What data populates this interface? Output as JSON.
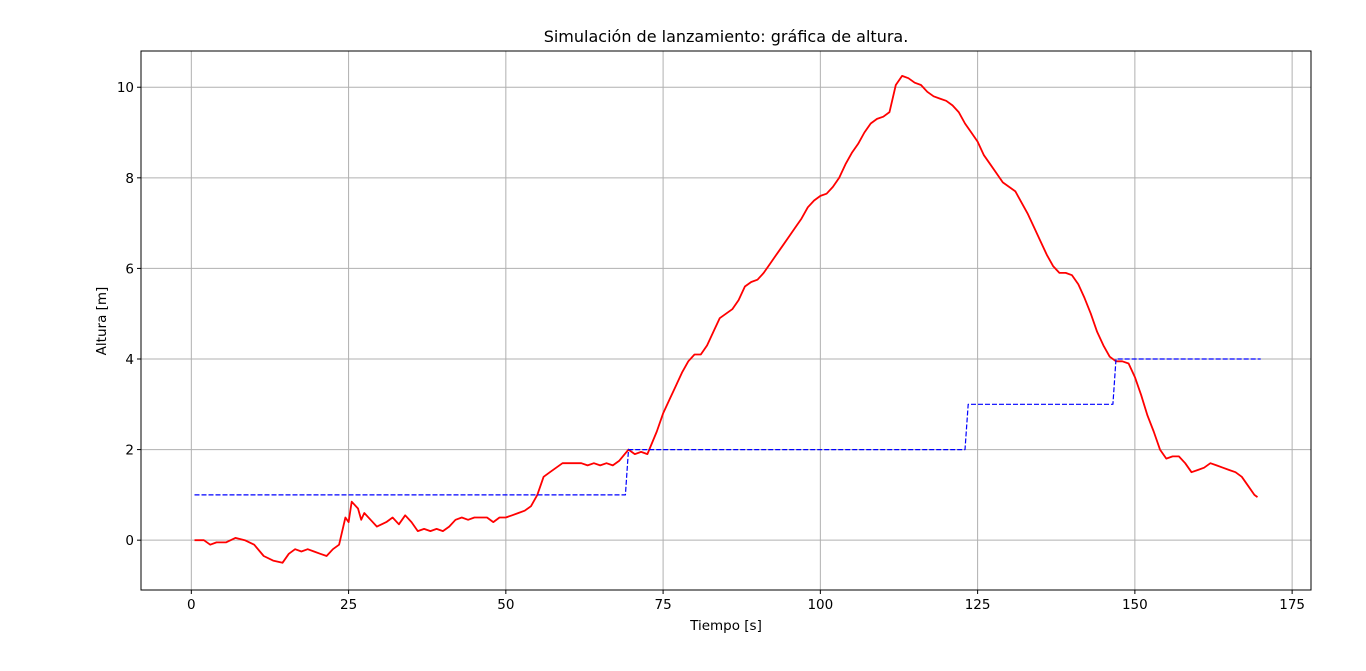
{
  "chart_data": {
    "type": "line",
    "title": "Simulación de lanzamiento: gráfica de altura.",
    "xlabel": "Tiempo [s]",
    "ylabel": "Altura [m]",
    "xlim": [
      -8,
      178
    ],
    "ylim": [
      -1.1,
      10.8
    ],
    "xticks": [
      0,
      25,
      50,
      75,
      100,
      125,
      150,
      175
    ],
    "yticks": [
      0,
      2,
      4,
      6,
      8,
      10
    ],
    "xtick_labels": [
      "0",
      "25",
      "50",
      "75",
      "100",
      "125",
      "150",
      "175"
    ],
    "ytick_labels": [
      "0",
      "2",
      "4",
      "6",
      "8",
      "10"
    ],
    "grid": true,
    "legend": null,
    "series": [
      {
        "color": "#ff0000",
        "style": "solid",
        "points": [
          [
            0.5,
            0.0
          ],
          [
            2.0,
            0.0
          ],
          [
            3.0,
            -0.1
          ],
          [
            4.0,
            -0.05
          ],
          [
            5.5,
            -0.05
          ],
          [
            7.0,
            0.05
          ],
          [
            8.5,
            0.0
          ],
          [
            10.0,
            -0.1
          ],
          [
            11.5,
            -0.35
          ],
          [
            13.0,
            -0.45
          ],
          [
            14.5,
            -0.5
          ],
          [
            15.5,
            -0.3
          ],
          [
            16.5,
            -0.2
          ],
          [
            17.5,
            -0.25
          ],
          [
            18.5,
            -0.2
          ],
          [
            19.5,
            -0.25
          ],
          [
            20.5,
            -0.3
          ],
          [
            21.5,
            -0.35
          ],
          [
            22.5,
            -0.2
          ],
          [
            23.5,
            -0.1
          ],
          [
            24.5,
            0.5
          ],
          [
            25.0,
            0.4
          ],
          [
            25.5,
            0.85
          ],
          [
            26.5,
            0.7
          ],
          [
            27.0,
            0.45
          ],
          [
            27.5,
            0.6
          ],
          [
            28.5,
            0.45
          ],
          [
            29.5,
            0.3
          ],
          [
            31.0,
            0.4
          ],
          [
            32.0,
            0.5
          ],
          [
            33.0,
            0.35
          ],
          [
            34.0,
            0.55
          ],
          [
            35.0,
            0.4
          ],
          [
            36.0,
            0.2
          ],
          [
            37.0,
            0.25
          ],
          [
            38.0,
            0.2
          ],
          [
            39.0,
            0.25
          ],
          [
            40.0,
            0.2
          ],
          [
            41.0,
            0.3
          ],
          [
            42.0,
            0.45
          ],
          [
            43.0,
            0.5
          ],
          [
            44.0,
            0.45
          ],
          [
            45.0,
            0.5
          ],
          [
            47.0,
            0.5
          ],
          [
            48.0,
            0.4
          ],
          [
            49.0,
            0.5
          ],
          [
            50.0,
            0.5
          ],
          [
            51.0,
            0.55
          ],
          [
            52.0,
            0.6
          ],
          [
            53.0,
            0.65
          ],
          [
            54.0,
            0.75
          ],
          [
            55.0,
            1.0
          ],
          [
            56.0,
            1.4
          ],
          [
            57.0,
            1.5
          ],
          [
            58.0,
            1.6
          ],
          [
            59.0,
            1.7
          ],
          [
            61.0,
            1.7
          ],
          [
            62.0,
            1.7
          ],
          [
            63.0,
            1.65
          ],
          [
            64.0,
            1.7
          ],
          [
            65.0,
            1.65
          ],
          [
            66.0,
            1.7
          ],
          [
            67.0,
            1.65
          ],
          [
            68.0,
            1.75
          ],
          [
            69.5,
            2.0
          ],
          [
            70.5,
            1.9
          ],
          [
            71.5,
            1.95
          ],
          [
            72.5,
            1.9
          ],
          [
            74.0,
            2.4
          ],
          [
            75.0,
            2.8
          ],
          [
            76.0,
            3.1
          ],
          [
            77.0,
            3.4
          ],
          [
            78.0,
            3.7
          ],
          [
            79.0,
            3.95
          ],
          [
            80.0,
            4.1
          ],
          [
            81.0,
            4.1
          ],
          [
            82.0,
            4.3
          ],
          [
            83.0,
            4.6
          ],
          [
            84.0,
            4.9
          ],
          [
            85.0,
            5.0
          ],
          [
            86.0,
            5.1
          ],
          [
            87.0,
            5.3
          ],
          [
            88.0,
            5.6
          ],
          [
            89.0,
            5.7
          ],
          [
            90.0,
            5.75
          ],
          [
            91.0,
            5.9
          ],
          [
            92.0,
            6.1
          ],
          [
            93.0,
            6.3
          ],
          [
            94.0,
            6.5
          ],
          [
            95.0,
            6.7
          ],
          [
            96.0,
            6.9
          ],
          [
            97.0,
            7.1
          ],
          [
            98.0,
            7.35
          ],
          [
            99.0,
            7.5
          ],
          [
            100.0,
            7.6
          ],
          [
            101.0,
            7.65
          ],
          [
            102.0,
            7.8
          ],
          [
            103.0,
            8.0
          ],
          [
            104.0,
            8.3
          ],
          [
            105.0,
            8.55
          ],
          [
            106.0,
            8.75
          ],
          [
            107.0,
            9.0
          ],
          [
            108.0,
            9.2
          ],
          [
            109.0,
            9.3
          ],
          [
            110.0,
            9.35
          ],
          [
            111.0,
            9.45
          ],
          [
            112.0,
            10.05
          ],
          [
            113.0,
            10.25
          ],
          [
            114.0,
            10.2
          ],
          [
            115.0,
            10.1
          ],
          [
            116.0,
            10.05
          ],
          [
            117.0,
            9.9
          ],
          [
            118.0,
            9.8
          ],
          [
            119.0,
            9.75
          ],
          [
            120.0,
            9.7
          ],
          [
            121.0,
            9.6
          ],
          [
            122.0,
            9.45
          ],
          [
            123.0,
            9.2
          ],
          [
            124.0,
            9.0
          ],
          [
            125.0,
            8.8
          ],
          [
            126.0,
            8.5
          ],
          [
            127.0,
            8.3
          ],
          [
            128.0,
            8.1
          ],
          [
            129.0,
            7.9
          ],
          [
            130.0,
            7.8
          ],
          [
            131.0,
            7.7
          ],
          [
            132.0,
            7.45
          ],
          [
            133.0,
            7.2
          ],
          [
            134.0,
            6.9
          ],
          [
            135.0,
            6.6
          ],
          [
            136.0,
            6.3
          ],
          [
            137.0,
            6.05
          ],
          [
            138.0,
            5.9
          ],
          [
            139.0,
            5.9
          ],
          [
            140.0,
            5.85
          ],
          [
            141.0,
            5.65
          ],
          [
            142.0,
            5.35
          ],
          [
            143.0,
            5.0
          ],
          [
            144.0,
            4.6
          ],
          [
            145.0,
            4.3
          ],
          [
            146.0,
            4.05
          ],
          [
            147.0,
            3.95
          ],
          [
            148.0,
            3.95
          ],
          [
            149.0,
            3.9
          ],
          [
            150.0,
            3.6
          ],
          [
            151.0,
            3.2
          ],
          [
            152.0,
            2.75
          ],
          [
            153.0,
            2.4
          ],
          [
            154.0,
            2.0
          ],
          [
            155.0,
            1.8
          ],
          [
            156.0,
            1.85
          ],
          [
            157.0,
            1.85
          ],
          [
            158.0,
            1.7
          ],
          [
            159.0,
            1.5
          ],
          [
            160.0,
            1.55
          ],
          [
            161.0,
            1.6
          ],
          [
            162.0,
            1.7
          ],
          [
            163.0,
            1.65
          ],
          [
            164.0,
            1.6
          ],
          [
            165.0,
            1.55
          ],
          [
            166.0,
            1.5
          ],
          [
            167.0,
            1.4
          ],
          [
            168.0,
            1.2
          ],
          [
            169.0,
            1.0
          ],
          [
            169.5,
            0.95
          ]
        ]
      },
      {
        "color": "#0000ff",
        "style": "dashed",
        "points": [
          [
            0.5,
            1.0
          ],
          [
            69.0,
            1.0
          ],
          [
            69.5,
            2.0
          ],
          [
            123.0,
            2.0
          ],
          [
            123.5,
            3.0
          ],
          [
            146.5,
            3.0
          ],
          [
            147.0,
            4.0
          ],
          [
            170.0,
            4.0
          ]
        ]
      }
    ]
  }
}
